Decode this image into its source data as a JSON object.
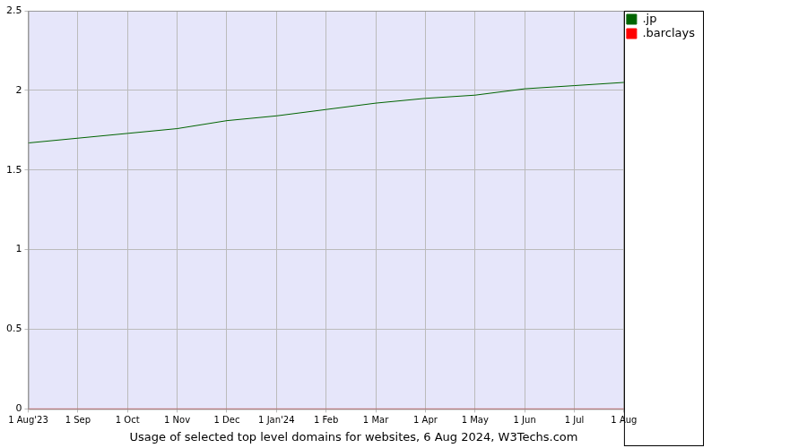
{
  "chart_data": {
    "type": "line",
    "title": "Usage of selected top level domains for websites, 6 Aug 2024, W3Techs.com",
    "categories": [
      "1 Aug'23",
      "1 Sep",
      "1 Oct",
      "1 Nov",
      "1 Dec",
      "1 Jan'24",
      "1 Feb",
      "1 Mar",
      "1 Apr",
      "1 May",
      "1 Jun",
      "1 Jul",
      "1 Aug"
    ],
    "series": [
      {
        "name": ".jp",
        "color": "#006400",
        "values": [
          1.67,
          1.7,
          1.73,
          1.76,
          1.81,
          1.84,
          1.88,
          1.92,
          1.95,
          1.97,
          2.01,
          2.03,
          2.05
        ]
      },
      {
        "name": ".barclays",
        "color": "#ff0000",
        "values": [
          0,
          0,
          0,
          0,
          0,
          0,
          0,
          0,
          0,
          0,
          0,
          0,
          0
        ]
      }
    ],
    "ylim": [
      0,
      2.5
    ],
    "yticks": [
      0,
      0.5,
      1,
      1.5,
      2,
      2.5
    ],
    "grid": true,
    "legend": "right"
  }
}
